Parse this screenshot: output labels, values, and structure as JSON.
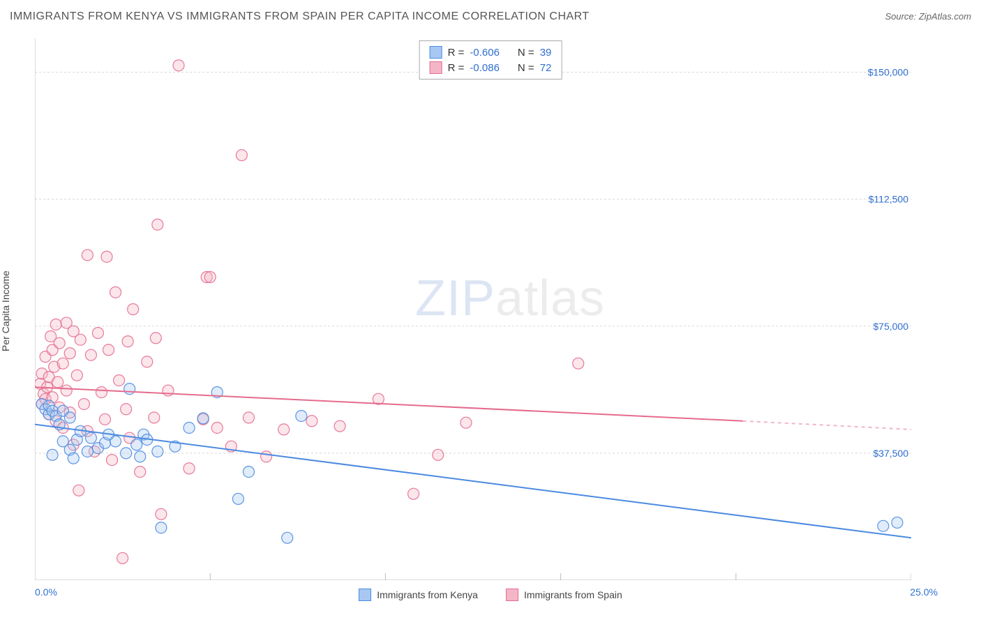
{
  "header": {
    "title": "IMMIGRANTS FROM KENYA VS IMMIGRANTS FROM SPAIN PER CAPITA INCOME CORRELATION CHART",
    "source_prefix": "Source: ",
    "source": "ZipAtlas.com"
  },
  "watermark": {
    "zip": "ZIP",
    "atlas": "atlas"
  },
  "chart": {
    "type": "scatter",
    "ylabel": "Per Capita Income",
    "xlim": [
      0.0,
      25.0
    ],
    "ylim": [
      0,
      160000
    ],
    "x_min_label": "0.0%",
    "x_max_label": "25.0%",
    "y_ticks": [
      37500,
      75000,
      112500,
      150000
    ],
    "y_tick_labels": [
      "$37,500",
      "$75,000",
      "$112,500",
      "$150,000"
    ],
    "x_grid_ticks": [
      5,
      10,
      15,
      20,
      25
    ],
    "background_color": "#ffffff",
    "grid_color": "#d8d8d8",
    "axis_color": "#bbbbbb",
    "tick_label_color": "#2f6fd0",
    "marker_radius": 8,
    "marker_fill_opacity": 0.35,
    "marker_stroke_opacity": 0.9,
    "line_width": 2,
    "series": [
      {
        "name": "Immigrants from Kenya",
        "color": "#4b8ae0",
        "fill": "#a7c8f2",
        "R": "-0.606",
        "N": "39",
        "trend": {
          "x1": 0.0,
          "y1": 46000,
          "x2": 25.0,
          "y2": 12500
        },
        "points": [
          [
            0.2,
            52000
          ],
          [
            0.3,
            50500
          ],
          [
            0.4,
            49000
          ],
          [
            0.4,
            51500
          ],
          [
            0.5,
            50000
          ],
          [
            0.5,
            37000
          ],
          [
            0.6,
            48500
          ],
          [
            0.7,
            46000
          ],
          [
            0.8,
            41000
          ],
          [
            0.8,
            50000
          ],
          [
            1.0,
            38500
          ],
          [
            1.0,
            48000
          ],
          [
            1.1,
            36000
          ],
          [
            1.2,
            41500
          ],
          [
            1.3,
            44000
          ],
          [
            1.5,
            38000
          ],
          [
            1.6,
            42000
          ],
          [
            1.8,
            39000
          ],
          [
            2.0,
            40500
          ],
          [
            2.1,
            43000
          ],
          [
            2.3,
            41000
          ],
          [
            2.6,
            37500
          ],
          [
            2.7,
            56500
          ],
          [
            2.9,
            40000
          ],
          [
            3.0,
            36500
          ],
          [
            3.1,
            43000
          ],
          [
            3.2,
            41500
          ],
          [
            3.5,
            38000
          ],
          [
            3.6,
            15500
          ],
          [
            4.0,
            39500
          ],
          [
            4.4,
            45000
          ],
          [
            4.8,
            47800
          ],
          [
            5.2,
            55500
          ],
          [
            5.8,
            24000
          ],
          [
            6.1,
            32000
          ],
          [
            7.2,
            12500
          ],
          [
            7.6,
            48500
          ],
          [
            24.2,
            16000
          ],
          [
            24.6,
            17000
          ]
        ]
      },
      {
        "name": "Immigrants from Spain",
        "color": "#e56b8e",
        "fill": "#f4b6c7",
        "R": "-0.086",
        "N": "72",
        "trend": {
          "x1": 0.0,
          "y1": 57000,
          "x2": 20.2,
          "y2": 47000
        },
        "trend_dash": {
          "x1": 20.2,
          "y1": 47000,
          "x2": 25.0,
          "y2": 44500
        },
        "points": [
          [
            0.15,
            58000
          ],
          [
            0.2,
            52000
          ],
          [
            0.2,
            61000
          ],
          [
            0.25,
            55000
          ],
          [
            0.3,
            53500
          ],
          [
            0.3,
            66000
          ],
          [
            0.35,
            57000
          ],
          [
            0.4,
            60000
          ],
          [
            0.4,
            49000
          ],
          [
            0.45,
            72000
          ],
          [
            0.5,
            54000
          ],
          [
            0.5,
            68000
          ],
          [
            0.55,
            63000
          ],
          [
            0.6,
            47000
          ],
          [
            0.6,
            75500
          ],
          [
            0.65,
            58500
          ],
          [
            0.7,
            51000
          ],
          [
            0.7,
            70000
          ],
          [
            0.8,
            64000
          ],
          [
            0.8,
            45000
          ],
          [
            0.9,
            76000
          ],
          [
            0.9,
            56000
          ],
          [
            1.0,
            49500
          ],
          [
            1.0,
            67000
          ],
          [
            1.1,
            73500
          ],
          [
            1.1,
            40000
          ],
          [
            1.2,
            60500
          ],
          [
            1.25,
            26500
          ],
          [
            1.3,
            71000
          ],
          [
            1.4,
            52000
          ],
          [
            1.5,
            44000
          ],
          [
            1.5,
            96000
          ],
          [
            1.6,
            66500
          ],
          [
            1.7,
            38000
          ],
          [
            1.8,
            73000
          ],
          [
            1.9,
            55500
          ],
          [
            2.0,
            47500
          ],
          [
            2.05,
            95500
          ],
          [
            2.1,
            68000
          ],
          [
            2.2,
            35500
          ],
          [
            2.3,
            85000
          ],
          [
            2.4,
            59000
          ],
          [
            2.5,
            6500
          ],
          [
            2.6,
            50500
          ],
          [
            2.65,
            70500
          ],
          [
            2.7,
            42000
          ],
          [
            2.8,
            80000
          ],
          [
            3.0,
            32000
          ],
          [
            3.2,
            64500
          ],
          [
            3.4,
            48000
          ],
          [
            3.45,
            71500
          ],
          [
            3.5,
            105000
          ],
          [
            3.6,
            19500
          ],
          [
            3.8,
            56000
          ],
          [
            4.1,
            152000
          ],
          [
            4.4,
            33000
          ],
          [
            4.8,
            47500
          ],
          [
            4.9,
            89500
          ],
          [
            5.0,
            89500
          ],
          [
            5.2,
            45000
          ],
          [
            5.6,
            39500
          ],
          [
            5.9,
            125500
          ],
          [
            6.1,
            48000
          ],
          [
            6.6,
            36500
          ],
          [
            7.1,
            44500
          ],
          [
            7.9,
            47000
          ],
          [
            8.7,
            45500
          ],
          [
            9.8,
            53500
          ],
          [
            10.8,
            25500
          ],
          [
            11.5,
            37000
          ],
          [
            12.3,
            46500
          ],
          [
            15.5,
            64000
          ]
        ]
      }
    ]
  },
  "stats_legend": {
    "R_label": "R =",
    "N_label": "N ="
  }
}
